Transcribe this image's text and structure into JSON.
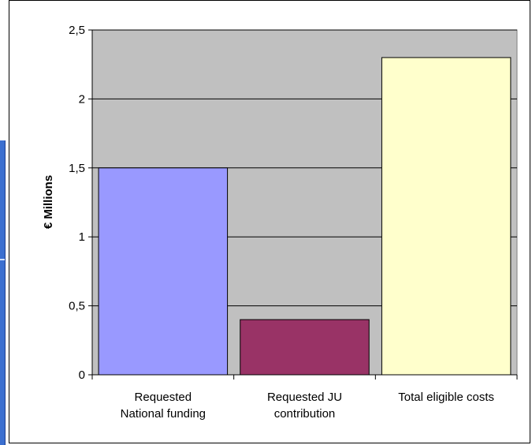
{
  "chart_data": {
    "type": "bar",
    "categories": [
      [
        "Requested",
        "National funding"
      ],
      [
        "Requested JU",
        "contribution"
      ],
      [
        "Total eligible costs"
      ]
    ],
    "values": [
      1.5,
      0.4,
      2.3
    ],
    "colors": [
      "#9999ff",
      "#993366",
      "#ffffcc"
    ],
    "ylabel": "€ Millions",
    "ylim": [
      0,
      2.5
    ],
    "yticks": [
      0,
      0.5,
      1,
      1.5,
      2,
      2.5
    ],
    "ytick_labels": [
      "0",
      "0,5",
      "1",
      "1,5",
      "2",
      "2,5"
    ],
    "plot_background": "#c0c0c0",
    "grid": true,
    "legend": false
  }
}
